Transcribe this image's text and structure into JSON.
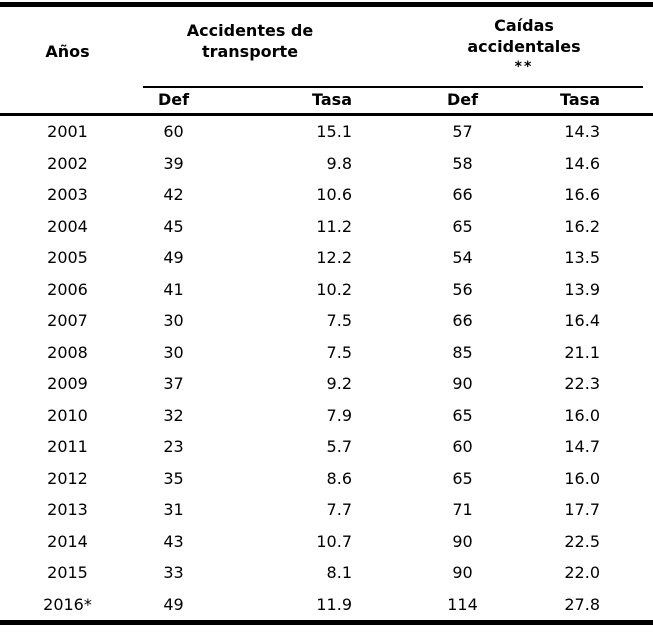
{
  "table": {
    "header": {
      "years_label": "Años",
      "group1": {
        "title": "Accidentes de transporte",
        "def_label": "Def",
        "tasa_label": "Tasa"
      },
      "group2": {
        "title": "Caídas accidentales",
        "note": "**",
        "def_label": "Def",
        "tasa_label": "Tasa"
      }
    },
    "rows": [
      [
        "2001",
        "60",
        "15.1",
        "57",
        "14.3"
      ],
      [
        "2002",
        "39",
        "9.8",
        "58",
        "14.6"
      ],
      [
        "2003",
        "42",
        "10.6",
        "66",
        "16.6"
      ],
      [
        "2004",
        "45",
        "11.2",
        "65",
        "16.2"
      ],
      [
        "2005",
        "49",
        "12.2",
        "54",
        "13.5"
      ],
      [
        "2006",
        "41",
        "10.2",
        "56",
        "13.9"
      ],
      [
        "2007",
        "30",
        "7.5",
        "66",
        "16.4"
      ],
      [
        "2008",
        "30",
        "7.5",
        "85",
        "21.1"
      ],
      [
        "2009",
        "37",
        "9.2",
        "90",
        "22.3"
      ],
      [
        "2010",
        "32",
        "7.9",
        "65",
        "16.0"
      ],
      [
        "2011",
        "23",
        "5.7",
        "60",
        "14.7"
      ],
      [
        "2012",
        "35",
        "8.6",
        "65",
        "16.0"
      ],
      [
        "2013",
        "31",
        "7.7",
        "71",
        "17.7"
      ],
      [
        "2014",
        "43",
        "10.7",
        "90",
        "22.5"
      ],
      [
        "2015",
        "33",
        "8.1",
        "90",
        "22.0"
      ],
      [
        "2016*",
        "49",
        "11.9",
        "114",
        "27.8"
      ]
    ],
    "colors": {
      "text": "#000000",
      "rule": "#000000",
      "background": "#ffffff"
    }
  },
  "chart_data": {
    "type": "table",
    "title": "",
    "categories": [
      "2001",
      "2002",
      "2003",
      "2004",
      "2005",
      "2006",
      "2007",
      "2008",
      "2009",
      "2010",
      "2011",
      "2012",
      "2013",
      "2014",
      "2015",
      "2016*"
    ],
    "series": [
      {
        "name": "Accidentes de transporte - Def",
        "values": [
          60,
          39,
          42,
          45,
          49,
          41,
          30,
          30,
          37,
          32,
          23,
          35,
          31,
          43,
          33,
          49
        ]
      },
      {
        "name": "Accidentes de transporte - Tasa",
        "values": [
          15.1,
          9.8,
          10.6,
          11.2,
          12.2,
          10.2,
          7.5,
          7.5,
          9.2,
          7.9,
          5.7,
          8.6,
          7.7,
          10.7,
          8.1,
          11.9
        ]
      },
      {
        "name": "Caídas accidentales ** - Def",
        "values": [
          57,
          58,
          66,
          65,
          54,
          56,
          66,
          85,
          90,
          65,
          60,
          65,
          71,
          90,
          90,
          114
        ]
      },
      {
        "name": "Caídas accidentales ** - Tasa",
        "values": [
          14.3,
          14.6,
          16.6,
          16.2,
          13.5,
          13.9,
          16.4,
          21.1,
          22.3,
          16.0,
          14.7,
          16.0,
          17.7,
          22.5,
          22.0,
          27.8
        ]
      }
    ]
  }
}
